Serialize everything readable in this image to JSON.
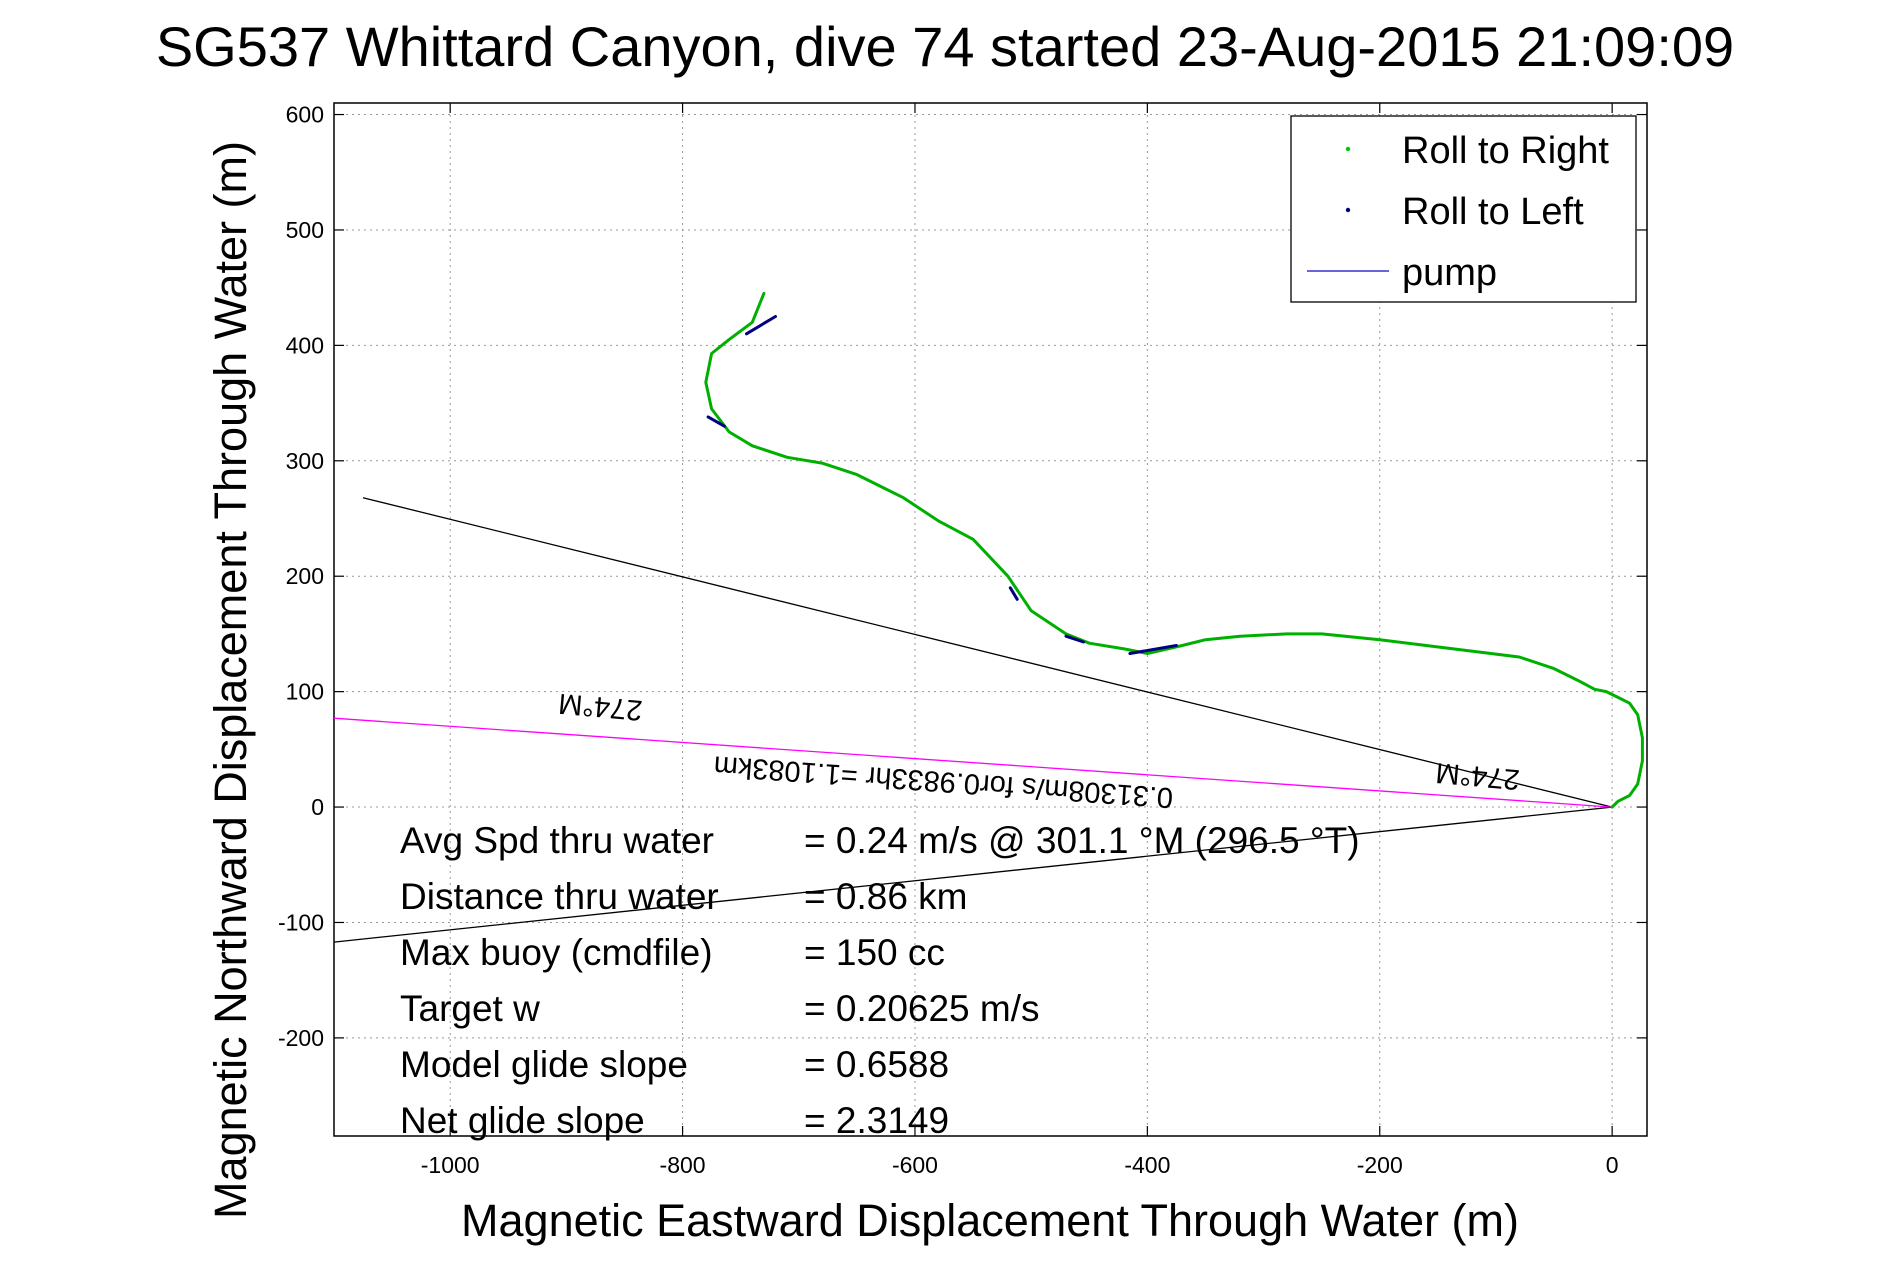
{
  "chart_data": {
    "type": "line",
    "title": "SG537 Whittard Canyon, dive 74 started 23-Aug-2015 21:09:09",
    "xlabel": "Magnetic Eastward Displacement Through Water (m)",
    "ylabel": "Magnetic Northward Displacement Through Water (m)",
    "xlim": [
      -1100,
      30
    ],
    "ylim": [
      -285,
      610
    ],
    "xticks": [
      -1000,
      -800,
      -600,
      -400,
      -200,
      0
    ],
    "yticks": [
      -200,
      -100,
      0,
      100,
      200,
      300,
      400,
      500,
      600
    ],
    "xtick_labels": [
      "-1000",
      "-800",
      "-600",
      "-400",
      "-200",
      "0"
    ],
    "ytick_labels": [
      "-200",
      "-100",
      "0",
      "100",
      "200",
      "300",
      "400",
      "500",
      "600"
    ],
    "grid": true,
    "legend_position": "top-right",
    "legend": [
      {
        "label": "Roll to Right",
        "color": "#00c800",
        "marker": "dot"
      },
      {
        "label": "Roll to Left",
        "color": "#000080",
        "marker": "dot"
      },
      {
        "label": "pump",
        "color": "#3333cc",
        "marker": "line"
      }
    ],
    "series": [
      {
        "name": "Roll to Right",
        "color": "#00b000",
        "x": [
          0,
          5,
          15,
          22,
          26,
          26,
          22,
          15,
          5,
          -5,
          -15,
          -30,
          -50,
          -80,
          -120,
          -160,
          -200,
          -250,
          -280,
          -320,
          -350,
          -370,
          -400,
          -420,
          -450,
          -470,
          -500,
          -520,
          -550,
          -580,
          -610,
          -650,
          -680,
          -710,
          -740,
          -760,
          -775,
          -780,
          -775,
          -760,
          -740,
          -730
        ],
        "y": [
          0,
          5,
          10,
          20,
          40,
          60,
          80,
          90,
          95,
          100,
          102,
          110,
          120,
          130,
          135,
          140,
          145,
          150,
          150,
          148,
          145,
          140,
          133,
          137,
          142,
          150,
          170,
          200,
          232,
          248,
          268,
          288,
          298,
          303,
          313,
          325,
          345,
          368,
          393,
          405,
          420,
          445
        ]
      },
      {
        "name": "Roll to Left",
        "color": "#000080",
        "segments": [
          {
            "x": [
              -720,
              -745
            ],
            "y": [
              425,
              410
            ]
          },
          {
            "x": [
              -764,
              -778
            ],
            "y": [
              330,
              338
            ]
          },
          {
            "x": [
              -518,
              -512
            ],
            "y": [
              190,
              180
            ]
          },
          {
            "x": [
              -470,
              -455
            ],
            "y": [
              148,
              143
            ]
          },
          {
            "x": [
              -415,
              -375
            ],
            "y": [
              133,
              140
            ]
          }
        ]
      }
    ],
    "reference_lines": [
      {
        "color": "#000000",
        "x": [
          -1075,
          0
        ],
        "y": [
          268,
          0
        ]
      },
      {
        "color": "#000000",
        "x": [
          -1100,
          0
        ],
        "y": [
          -117,
          0
        ]
      },
      {
        "color": "#ff00ff",
        "x": [
          -1100,
          0
        ],
        "y": [
          77,
          0
        ]
      }
    ],
    "annotations": [
      {
        "text": "274°M",
        "x": -870,
        "y": 95,
        "rotation_deg": 185,
        "size": 29
      },
      {
        "text": "274°M",
        "x": -115,
        "y": 35,
        "rotation_deg": 185,
        "size": 29
      },
      {
        "text": "0.31308m/s for0.9833hr =1.1083km",
        "x": -575,
        "y": 30,
        "rotation_deg": 184,
        "size": 29
      }
    ],
    "stats": [
      {
        "label": "Avg Spd thru water",
        "value": "=  0.24 m/s @ 301.1 °M (296.5 °T)"
      },
      {
        "label": "Distance thru water",
        "value": "=  0.86 km"
      },
      {
        "label": "Max buoy (cmdfile)",
        "value": "= 150 cc"
      },
      {
        "label": "Target w",
        "value": "= 0.20625 m/s"
      },
      {
        "label": "Model glide slope",
        "value": "= 0.6588"
      },
      {
        "label": "Net glide slope",
        "value": "= 2.3149"
      }
    ]
  }
}
